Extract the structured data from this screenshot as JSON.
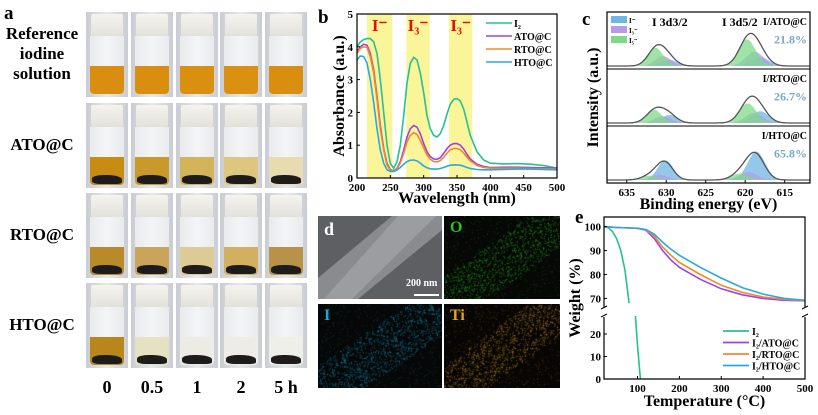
{
  "panels": {
    "a": {
      "letter": "a",
      "rows": [
        {
          "label_lines": [
            "Reference",
            "iodine",
            "solution"
          ],
          "liquid_colors": [
            "#d98e10",
            "#d98e10",
            "#d9900f",
            "#da9112",
            "#d98e10"
          ],
          "has_solid": false
        },
        {
          "label_lines": [
            "ATO@C"
          ],
          "liquid_colors": [
            "#c98c12",
            "#c99a2a",
            "#d4b45a",
            "#dcc680",
            "#e6dcb0"
          ],
          "has_solid": true
        },
        {
          "label_lines": [
            "RTO@C"
          ],
          "liquid_colors": [
            "#b98a2a",
            "#c9a45a",
            "#dccb94",
            "#d2b060",
            "#b9924a"
          ],
          "has_solid": true
        },
        {
          "label_lines": [
            "HTO@C"
          ],
          "liquid_colors": [
            "#b8861a",
            "#e7e1c4",
            "#ecebe4",
            "#eeece6",
            "#efefea"
          ],
          "has_solid": true
        }
      ],
      "time_labels": [
        "0",
        "0.5",
        "1",
        "2",
        "5 h"
      ]
    },
    "b": {
      "letter": "b"
    },
    "c": {
      "letter": "c"
    },
    "d": {
      "letter": "d",
      "scale_bar": "200 nm",
      "maps": [
        {
          "label": "O",
          "color": "#22c322"
        },
        {
          "label": "I",
          "color": "#1aa6d6"
        },
        {
          "label": "Ti",
          "color": "#e6a21a"
        }
      ]
    },
    "e": {
      "letter": "e"
    }
  },
  "chart_data": [
    {
      "id": "b",
      "type": "line",
      "title": "",
      "xlabel": "Wavelength (nm)",
      "ylabel": "Absorbance (a.u.)",
      "xlim": [
        200,
        500
      ],
      "ylim": [
        0,
        5
      ],
      "xticks": [
        200,
        250,
        300,
        350,
        400,
        450,
        500
      ],
      "yticks": [
        0,
        1,
        2,
        3,
        4,
        5
      ],
      "legend_position": "top-right",
      "highlight_bands": [
        {
          "label": "I⁻",
          "from": 215,
          "to": 253
        },
        {
          "label": "I₃⁻",
          "from": 274,
          "to": 309
        },
        {
          "label": "I₃⁻",
          "from": 338,
          "to": 373
        }
      ],
      "band_label_color": "#e01010",
      "band_color": "#fbf59a",
      "series": [
        {
          "name": "I₂",
          "color": "#22c38e",
          "x": [
            200,
            205,
            210,
            215,
            220,
            225,
            230,
            235,
            240,
            245,
            250,
            255,
            260,
            265,
            270,
            275,
            280,
            285,
            290,
            295,
            300,
            305,
            310,
            315,
            320,
            325,
            330,
            335,
            340,
            345,
            350,
            355,
            360,
            365,
            370,
            380,
            390,
            400,
            420,
            440,
            460,
            480,
            500
          ],
          "y": [
            4.0,
            4.15,
            4.22,
            4.25,
            4.25,
            4.15,
            3.8,
            3.0,
            2.0,
            1.0,
            0.45,
            0.3,
            0.5,
            1.0,
            1.9,
            2.9,
            3.5,
            3.68,
            3.6,
            3.2,
            2.6,
            1.9,
            1.5,
            1.3,
            1.25,
            1.35,
            1.6,
            1.95,
            2.25,
            2.4,
            2.42,
            2.35,
            2.1,
            1.7,
            1.3,
            0.8,
            0.55,
            0.45,
            0.43,
            0.44,
            0.42,
            0.38,
            0.3
          ]
        },
        {
          "name": "ATO@C",
          "color": "#a040e6",
          "x": [
            200,
            205,
            210,
            215,
            220,
            225,
            230,
            235,
            240,
            245,
            250,
            255,
            260,
            265,
            270,
            275,
            280,
            285,
            290,
            295,
            300,
            305,
            310,
            315,
            320,
            325,
            330,
            335,
            340,
            345,
            350,
            355,
            360,
            365,
            370,
            380,
            390,
            400,
            420,
            440,
            460,
            480,
            500
          ],
          "y": [
            3.85,
            4.0,
            4.08,
            4.05,
            3.8,
            3.3,
            2.5,
            1.6,
            0.9,
            0.45,
            0.25,
            0.22,
            0.3,
            0.5,
            0.85,
            1.25,
            1.5,
            1.6,
            1.55,
            1.35,
            1.05,
            0.8,
            0.65,
            0.58,
            0.57,
            0.62,
            0.75,
            0.9,
            1.0,
            1.05,
            1.05,
            1.0,
            0.88,
            0.72,
            0.58,
            0.42,
            0.35,
            0.32,
            0.33,
            0.33,
            0.32,
            0.31,
            0.3
          ]
        },
        {
          "name": "RTO@C",
          "color": "#f08a24",
          "x": [
            200,
            205,
            210,
            215,
            220,
            225,
            230,
            235,
            240,
            245,
            250,
            255,
            260,
            265,
            270,
            275,
            280,
            285,
            290,
            295,
            300,
            305,
            310,
            315,
            320,
            325,
            330,
            335,
            340,
            345,
            350,
            355,
            360,
            365,
            370,
            380,
            390,
            400,
            420,
            440,
            460,
            480,
            500
          ],
          "y": [
            3.8,
            3.95,
            4.0,
            3.98,
            3.7,
            3.2,
            2.4,
            1.5,
            0.85,
            0.4,
            0.23,
            0.22,
            0.28,
            0.45,
            0.75,
            1.1,
            1.3,
            1.38,
            1.33,
            1.15,
            0.92,
            0.7,
            0.57,
            0.5,
            0.49,
            0.53,
            0.63,
            0.76,
            0.86,
            0.9,
            0.9,
            0.86,
            0.76,
            0.63,
            0.52,
            0.38,
            0.32,
            0.3,
            0.3,
            0.3,
            0.29,
            0.28,
            0.27
          ]
        },
        {
          "name": "HTO@C",
          "color": "#2aa8e0",
          "x": [
            200,
            205,
            210,
            215,
            220,
            225,
            230,
            235,
            240,
            245,
            250,
            255,
            260,
            265,
            270,
            275,
            280,
            285,
            290,
            295,
            300,
            305,
            310,
            315,
            320,
            325,
            330,
            335,
            340,
            345,
            350,
            355,
            360,
            365,
            370,
            380,
            390,
            400,
            420,
            440,
            460,
            480,
            500
          ],
          "y": [
            3.6,
            3.72,
            3.7,
            3.5,
            3.0,
            2.3,
            1.5,
            0.85,
            0.45,
            0.25,
            0.2,
            0.2,
            0.24,
            0.32,
            0.42,
            0.5,
            0.54,
            0.55,
            0.52,
            0.45,
            0.37,
            0.31,
            0.28,
            0.27,
            0.27,
            0.29,
            0.32,
            0.36,
            0.39,
            0.4,
            0.4,
            0.39,
            0.36,
            0.32,
            0.29,
            0.26,
            0.25,
            0.25,
            0.26,
            0.27,
            0.27,
            0.26,
            0.25
          ]
        }
      ]
    },
    {
      "id": "c",
      "type": "area",
      "title": "",
      "xlabel": "Binding energy (eV)",
      "ylabel": "Intensity (a.u.)",
      "xlim": [
        637.5,
        611.8
      ],
      "x_reversed": true,
      "xticks": [
        635,
        630,
        625,
        620,
        615
      ],
      "peak_labels": [
        "I 3d3/2",
        "I 3d5/2"
      ],
      "legend": [
        {
          "name": "I⁻",
          "color": "#6fb6e6"
        },
        {
          "name": "I₃⁻",
          "color": "#b69be8"
        },
        {
          "name": "I₅⁻",
          "color": "#7fd98a"
        }
      ],
      "legend_position": "top-left",
      "envelope_color": "#555555",
      "stacks": [
        {
          "sample": "I/ATO@C",
          "percent": "21.8%",
          "components": [
            {
              "species": "I⁻",
              "center_3d3": 629.6,
              "center_5d2": 618.1,
              "amp": 0.25
            },
            {
              "species": "I₃⁻",
              "center_3d3": 630.4,
              "center_5d2": 618.8,
              "amp": 0.4
            },
            {
              "species": "I₅⁻",
              "center_3d3": 631.4,
              "center_5d2": 619.8,
              "amp": 0.75
            }
          ]
        },
        {
          "sample": "I/RTO@C",
          "percent": "26.7%",
          "components": [
            {
              "species": "I⁻",
              "center_3d3": 629.6,
              "center_5d2": 618.1,
              "amp": 0.33
            },
            {
              "species": "I₃⁻",
              "center_3d3": 630.5,
              "center_5d2": 618.9,
              "amp": 0.28
            },
            {
              "species": "I₅⁻",
              "center_3d3": 631.6,
              "center_5d2": 619.7,
              "amp": 0.55
            }
          ]
        },
        {
          "sample": "I/HTO@C",
          "percent": "65.8%",
          "components": [
            {
              "species": "I⁻",
              "center_3d3": 630.1,
              "center_5d2": 618.6,
              "amp": 0.8
            },
            {
              "species": "I₃⁻",
              "center_3d3": 630.9,
              "center_5d2": 619.6,
              "amp": 0.22
            },
            {
              "species": "I₅⁻",
              "center_3d3": 632.2,
              "center_5d2": 620.7,
              "amp": 0.18
            }
          ]
        }
      ]
    },
    {
      "id": "e",
      "type": "line",
      "title": "",
      "xlabel": "Temperature (°C)",
      "ylabel": "Weight (%)",
      "xlim": [
        20,
        500
      ],
      "xticks": [
        100,
        200,
        300,
        400,
        500
      ],
      "ylim_upper": [
        66,
        104
      ],
      "yticks_upper": [
        70,
        80,
        90,
        100
      ],
      "ylim_lower": [
        0,
        28
      ],
      "yticks_lower": [
        0,
        10,
        20
      ],
      "axis_break": true,
      "legend_position": "bottom-right",
      "series": [
        {
          "name": "I₂",
          "color": "#22c38e",
          "x": [
            20,
            30,
            40,
            50,
            60,
            70,
            80,
            95,
            100,
            107
          ],
          "y": [
            100,
            99.5,
            98,
            95,
            90,
            82,
            68,
            28,
            15,
            0
          ]
        },
        {
          "name": "I₂/ATO@C",
          "color": "#a040e6",
          "x": [
            20,
            50,
            100,
            120,
            140,
            160,
            180,
            200,
            250,
            300,
            350,
            400,
            450,
            500
          ],
          "y": [
            100,
            99.6,
            99.3,
            98.5,
            95,
            90,
            86,
            83,
            78,
            74,
            71.5,
            70,
            69.2,
            69
          ]
        },
        {
          "name": "I₂/RTO@C",
          "color": "#f08a24",
          "x": [
            20,
            50,
            100,
            120,
            140,
            160,
            180,
            200,
            250,
            300,
            350,
            400,
            450,
            500
          ],
          "y": [
            100,
            99.6,
            99.3,
            98.6,
            96,
            91.5,
            88,
            85,
            80,
            75.5,
            72.5,
            70.6,
            69.6,
            69
          ]
        },
        {
          "name": "I₂/HTO@C",
          "color": "#2aa8e0",
          "x": [
            20,
            50,
            100,
            120,
            140,
            160,
            180,
            200,
            250,
            300,
            350,
            400,
            450,
            500
          ],
          "y": [
            100,
            99.6,
            99.3,
            98.8,
            96.8,
            93.5,
            90.5,
            88,
            83,
            78.5,
            74.5,
            71.8,
            70,
            69.2
          ]
        }
      ]
    }
  ]
}
